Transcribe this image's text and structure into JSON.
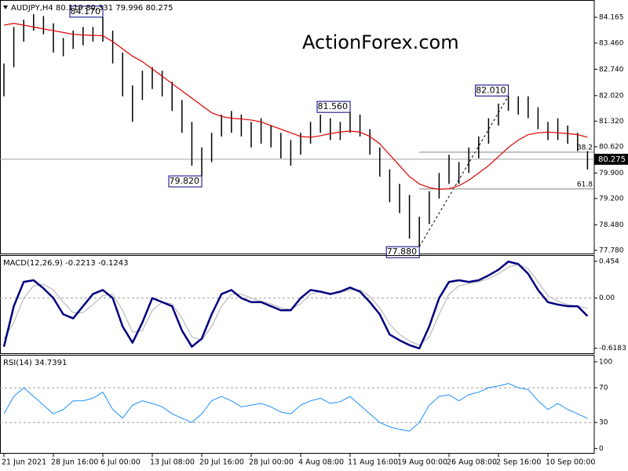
{
  "chart_data": [
    {
      "type": "ohlc",
      "title": "AUDJPY,H4  80.119 80.331 79.996 80.275",
      "watermark": "ActionForex.com",
      "color": "#000000",
      "ma_color": "#e00000",
      "ylim": [
        77.67,
        84.64
      ],
      "yticks": [
        {
          "value": 84.165,
          "label": "84.165"
        },
        {
          "value": 83.46,
          "label": "83.460"
        },
        {
          "value": 82.74,
          "label": "82.740"
        },
        {
          "value": 82.02,
          "label": "82.020"
        },
        {
          "value": 81.32,
          "label": "81.320"
        },
        {
          "value": 80.62,
          "label": "80.620"
        },
        {
          "value": 79.9,
          "label": "79.900"
        },
        {
          "value": 79.2,
          "label": "79.200"
        },
        {
          "value": 78.48,
          "label": "78.480"
        },
        {
          "value": 77.78,
          "label": "77.780"
        }
      ],
      "high": [
        82.9,
        83.9,
        84.1,
        84.25,
        84.2,
        84.0,
        83.6,
        83.8,
        83.9,
        83.9,
        84.17,
        83.8,
        83.2,
        82.3,
        82.7,
        82.8,
        82.7,
        82.4,
        81.9,
        81.3,
        80.6,
        81.0,
        81.5,
        81.6,
        81.5,
        81.3,
        81.4,
        81.2,
        81.0,
        80.8,
        81.0,
        81.3,
        81.5,
        81.4,
        81.3,
        81.56,
        81.5,
        81.1,
        80.6,
        80.0,
        79.6,
        79.3,
        78.7,
        79.4,
        79.9,
        80.4,
        80.2,
        80.6,
        80.9,
        81.4,
        81.8,
        82.01,
        82.0,
        82.0,
        81.7,
        81.3,
        81.4,
        81.2,
        81.0,
        80.5
      ],
      "low": [
        82.0,
        82.8,
        83.5,
        83.8,
        83.7,
        83.2,
        83.1,
        83.3,
        83.4,
        83.5,
        83.5,
        82.9,
        82.0,
        81.3,
        81.9,
        82.2,
        82.0,
        81.6,
        81.0,
        80.1,
        79.82,
        80.2,
        80.9,
        81.0,
        80.9,
        80.6,
        80.7,
        80.6,
        80.3,
        80.1,
        80.4,
        80.7,
        81.0,
        80.8,
        80.8,
        81.0,
        80.9,
        80.4,
        79.8,
        79.1,
        78.8,
        78.1,
        77.88,
        78.5,
        79.2,
        79.6,
        79.6,
        79.9,
        80.3,
        80.7,
        81.2,
        81.6,
        81.5,
        81.4,
        81.1,
        80.8,
        80.8,
        80.7,
        80.5,
        79.996
      ],
      "ma": [
        83.95,
        84.0,
        83.95,
        83.9,
        83.85,
        83.8,
        83.75,
        83.7,
        83.68,
        83.67,
        83.66,
        83.5,
        83.3,
        83.1,
        82.95,
        82.75,
        82.55,
        82.35,
        82.15,
        81.95,
        81.75,
        81.55,
        81.45,
        81.4,
        81.38,
        81.35,
        81.3,
        81.2,
        81.1,
        81.0,
        80.9,
        80.88,
        80.92,
        80.98,
        81.02,
        81.05,
        81.02,
        80.9,
        80.7,
        80.4,
        80.1,
        79.8,
        79.6,
        79.5,
        79.45,
        79.47,
        79.55,
        79.7,
        79.9,
        80.1,
        80.35,
        80.6,
        80.8,
        80.95,
        81.0,
        81.02,
        81.0,
        80.98,
        80.95,
        80.88
      ],
      "annotations": [
        {
          "label": "84.170",
          "value": 84.17,
          "x": 10
        },
        {
          "label": "79.820",
          "value": 79.82,
          "x": 20
        },
        {
          "label": "81.560",
          "value": 81.56,
          "x": 35
        },
        {
          "label": "77.880",
          "value": 77.88,
          "x": 42
        },
        {
          "label": "82.010",
          "value": 82.01,
          "x": 51
        }
      ],
      "levels": [
        {
          "label": "38.2",
          "value": 80.47
        },
        {
          "label": "61.8",
          "value": 79.46
        }
      ],
      "last": {
        "value": 80.275,
        "label": "80.275"
      }
    },
    {
      "type": "line",
      "title": "MACD(12,26,9) -0.2213 -0.1243",
      "ylim": [
        -0.69,
        0.53
      ],
      "yticks": [
        0.454,
        {
          "value": 0,
          "label": "0.00",
          "line": true
        },
        -0.6183
      ],
      "series": [
        {
          "color": "#b0b0b0",
          "width": 1,
          "values": [
            -0.5,
            -0.3,
            0.0,
            0.15,
            0.17,
            0.1,
            -0.05,
            -0.18,
            -0.18,
            -0.08,
            0.03,
            0.05,
            -0.15,
            -0.42,
            -0.4,
            -0.15,
            -0.05,
            -0.07,
            -0.25,
            -0.48,
            -0.52,
            -0.35,
            -0.1,
            0.05,
            0.05,
            0.0,
            -0.04,
            -0.07,
            -0.12,
            -0.14,
            -0.07,
            0.05,
            0.08,
            0.06,
            0.07,
            0.1,
            0.1,
            0.02,
            -0.12,
            -0.32,
            -0.45,
            -0.53,
            -0.58,
            -0.48,
            -0.2,
            0.05,
            0.15,
            0.18,
            0.2,
            0.24,
            0.3,
            0.38,
            0.42,
            0.36,
            0.2,
            0.03,
            -0.04,
            -0.08,
            -0.1,
            -0.1243
          ]
        },
        {
          "color": "#000080",
          "width": 2.5,
          "values": [
            -0.6,
            -0.1,
            0.2,
            0.22,
            0.12,
            0.0,
            -0.2,
            -0.25,
            -0.1,
            0.05,
            0.1,
            0.0,
            -0.35,
            -0.55,
            -0.3,
            0.0,
            -0.05,
            -0.1,
            -0.4,
            -0.6,
            -0.5,
            -0.2,
            0.05,
            0.1,
            0.0,
            -0.05,
            -0.05,
            -0.1,
            -0.15,
            -0.15,
            0.0,
            0.1,
            0.08,
            0.05,
            0.08,
            0.13,
            0.08,
            -0.05,
            -0.2,
            -0.45,
            -0.52,
            -0.58,
            -0.62,
            -0.35,
            0.0,
            0.2,
            0.22,
            0.2,
            0.22,
            0.28,
            0.35,
            0.45,
            0.42,
            0.3,
            0.1,
            -0.05,
            -0.08,
            -0.1,
            -0.1,
            -0.2213
          ]
        }
      ]
    },
    {
      "type": "line",
      "title": "RSI(14) 34.7391",
      "ylim": [
        -6,
        108
      ],
      "yticks": [
        100,
        {
          "value": 70,
          "label": "70",
          "line": true
        },
        {
          "value": 30,
          "label": "30",
          "line": true
        },
        0
      ],
      "series": [
        {
          "color": "#1e90ff",
          "width": 1,
          "values": [
            40,
            60,
            70,
            60,
            50,
            40,
            45,
            55,
            55,
            58,
            65,
            45,
            35,
            50,
            55,
            52,
            48,
            40,
            35,
            30,
            40,
            55,
            60,
            55,
            48,
            50,
            52,
            48,
            42,
            40,
            50,
            55,
            58,
            52,
            54,
            60,
            50,
            40,
            30,
            25,
            22,
            20,
            30,
            50,
            60,
            62,
            55,
            62,
            65,
            70,
            72,
            75,
            70,
            68,
            55,
            45,
            52,
            45,
            40,
            34.7391
          ]
        }
      ],
      "xticks": [
        {
          "value": 0,
          "label": "21 Jun 2021"
        },
        {
          "value": 5,
          "label": "28 Jun 16:00"
        },
        {
          "value": 10,
          "label": "6 Jul 00:00"
        },
        {
          "value": 15,
          "label": "13 Jul 08:00"
        },
        {
          "value": 20,
          "label": "20 Jul 16:00"
        },
        {
          "value": 25,
          "label": "28 Jul 00:00"
        },
        {
          "value": 30,
          "label": "4 Aug 08:00"
        },
        {
          "value": 35,
          "label": "11 Aug 16:00"
        },
        {
          "value": 40,
          "label": "19 Aug 00:00"
        },
        {
          "value": 45,
          "label": "26 Aug 08:00"
        },
        {
          "value": 50,
          "label": "2 Sep 16:00"
        },
        {
          "value": 55,
          "label": "10 Sep 00:00"
        }
      ]
    }
  ]
}
